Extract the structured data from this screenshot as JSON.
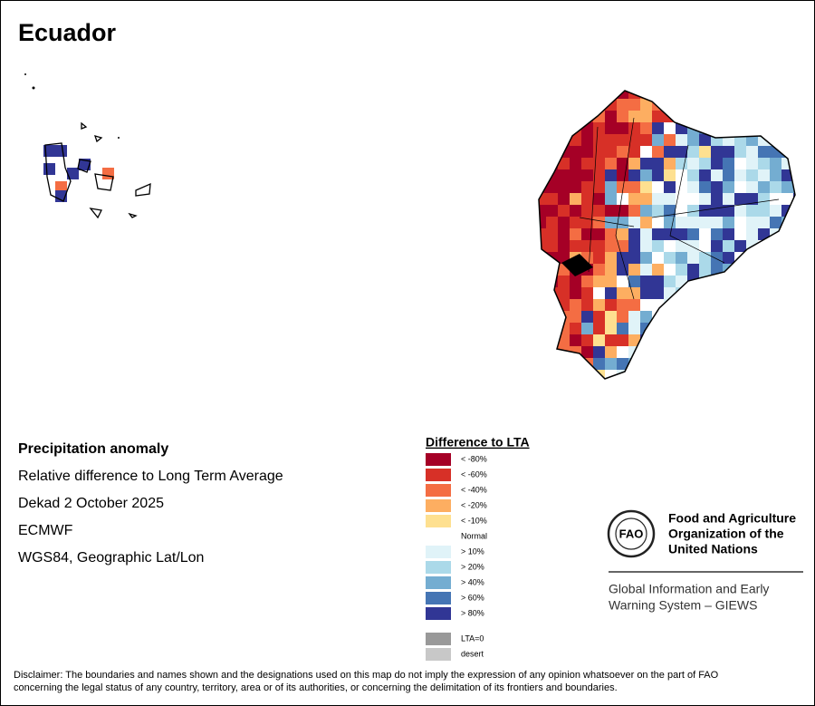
{
  "header": {
    "title": "Ecuador"
  },
  "info": {
    "lines": [
      "Precipitation anomaly",
      "Relative difference to Long Term Average",
      "Dekad 2 October 2025",
      "ECMWF",
      "WGS84, Geographic Lat/Lon"
    ]
  },
  "legend": {
    "title": "Difference to LTA",
    "items": [
      {
        "label": "< -80%",
        "color": "#a50026"
      },
      {
        "label": "< -60%",
        "color": "#d73027"
      },
      {
        "label": "< -40%",
        "color": "#f46d43"
      },
      {
        "label": "< -20%",
        "color": "#fdae61"
      },
      {
        "label": "< -10%",
        "color": "#fee090"
      },
      {
        "label": "Normal"
      },
      {
        "label": "> 10%",
        "color": "#e0f3f8"
      },
      {
        "label": "> 20%",
        "color": "#abd9e9"
      },
      {
        "label": "> 40%",
        "color": "#74add1"
      },
      {
        "label": "> 60%",
        "color": "#4575b4"
      },
      {
        "label": "> 80%",
        "color": "#313695"
      },
      {
        "label": "LTA=0",
        "color": "#999999"
      },
      {
        "label": "desert",
        "color": "#c8c8c8"
      }
    ]
  },
  "logo": {
    "org_lines": [
      "Food and Agriculture",
      "Organization of the",
      "United Nations"
    ],
    "system_lines": [
      "Global Information and Early",
      "Warning System – GIEWS"
    ]
  },
  "disclaimer": [
    "Disclaimer: The boundaries and names shown and the designations used on this map do not imply the expression of any opinion whatsoever on the part of FAO",
    "concerning the legal status of any country, territory, area or of its authorities, or concerning the delimitation of its frontiers and boundaries."
  ]
}
